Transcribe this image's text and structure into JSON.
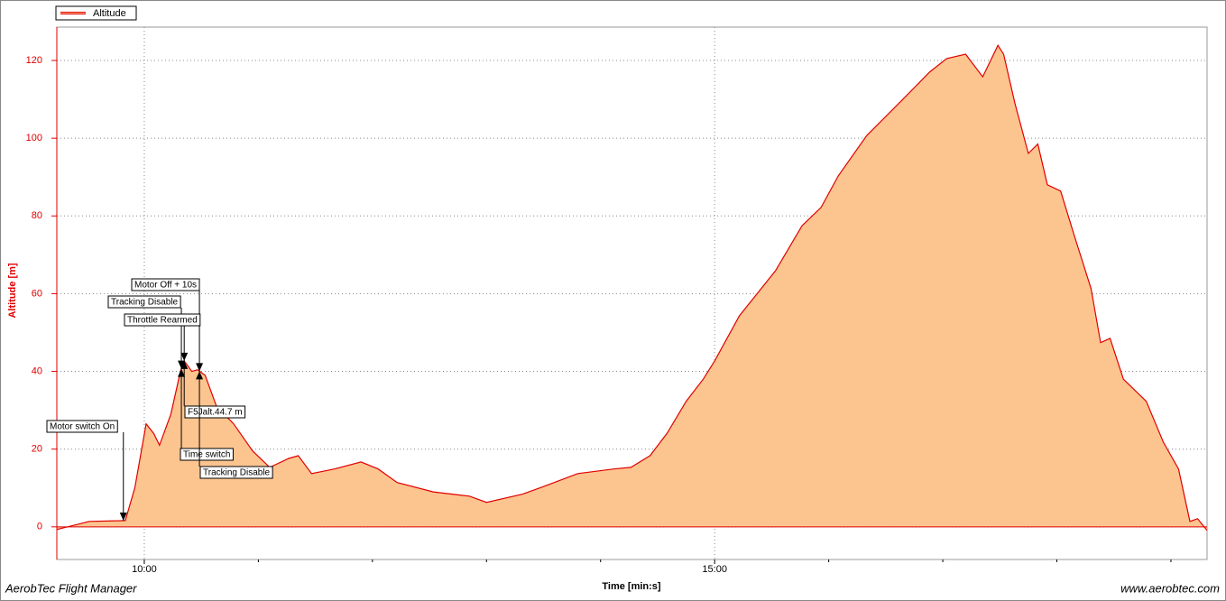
{
  "chart_data": {
    "type": "area",
    "legend_label": "Altitude",
    "ylabel": "Altitude [m]",
    "xlabel": "Time [min:s]",
    "footer_left": "AerobTec Flight Manager",
    "footer_right": "www.aerobtec.com",
    "color": "#e00000",
    "fill": "#fcc48f",
    "grid": true,
    "xlim": [
      554,
      1159
    ],
    "ylim": [
      -8.4,
      128.6
    ],
    "yticks": [
      0,
      20,
      40,
      60,
      80,
      100,
      120
    ],
    "xticks": [
      {
        "value": 600,
        "label": "10:00"
      },
      {
        "value": 900,
        "label": "15:00"
      }
    ],
    "xminorticks": [
      660,
      720,
      780,
      840,
      960,
      1020,
      1080,
      1140
    ],
    "series": [
      {
        "name": "Altitude",
        "x": [
          554,
          571,
          590,
          595,
          601,
          605,
          608,
          614,
          619,
          621,
          625,
          628,
          632,
          638,
          647,
          657,
          666,
          676,
          681,
          688,
          700,
          714,
          723,
          733,
          752,
          771,
          780,
          799,
          809,
          828,
          847,
          856,
          866,
          875,
          885,
          894,
          900,
          913,
          932,
          946,
          956,
          965,
          980,
          999,
          1013,
          1022,
          1032,
          1041,
          1049,
          1052,
          1058,
          1065,
          1070,
          1075,
          1082,
          1089,
          1098,
          1103,
          1108,
          1115,
          1127,
          1136,
          1144,
          1150,
          1154,
          1159
        ],
        "values": [
          -0.7,
          1.4,
          1.6,
          10,
          26.5,
          24,
          21,
          29,
          40,
          42.7,
          40,
          40.4,
          39,
          31,
          26.5,
          19.5,
          15.3,
          17.6,
          18.3,
          13.7,
          14.9,
          16.7,
          14.9,
          11.4,
          9,
          7.9,
          6.3,
          8.4,
          10.2,
          13.7,
          14.9,
          15.3,
          18.3,
          24.1,
          32.3,
          38,
          42.7,
          54.3,
          65.9,
          77.5,
          82.2,
          90.3,
          100.7,
          110,
          117,
          120.5,
          121.6,
          115.8,
          123.9,
          121.6,
          108.9,
          96.1,
          98.5,
          88,
          86.4,
          75.2,
          61.3,
          47.4,
          48.5,
          38,
          32.3,
          21.8,
          14.9,
          1.4,
          2.1,
          -0.9
        ]
      }
    ],
    "annotations": [
      {
        "text": "Motor switch On",
        "x": 589
      },
      {
        "text": "Tracking Disable",
        "x": 619.5
      },
      {
        "text": "Motor Off + 10s",
        "x": 629
      },
      {
        "text": "Throttle Rearmed",
        "x": 621
      },
      {
        "text": "F5Jalt.44.7 m",
        "x": 621
      },
      {
        "text": "Time switch",
        "x": 619.5
      },
      {
        "text": "Tracking Disable",
        "x": 629
      }
    ]
  }
}
